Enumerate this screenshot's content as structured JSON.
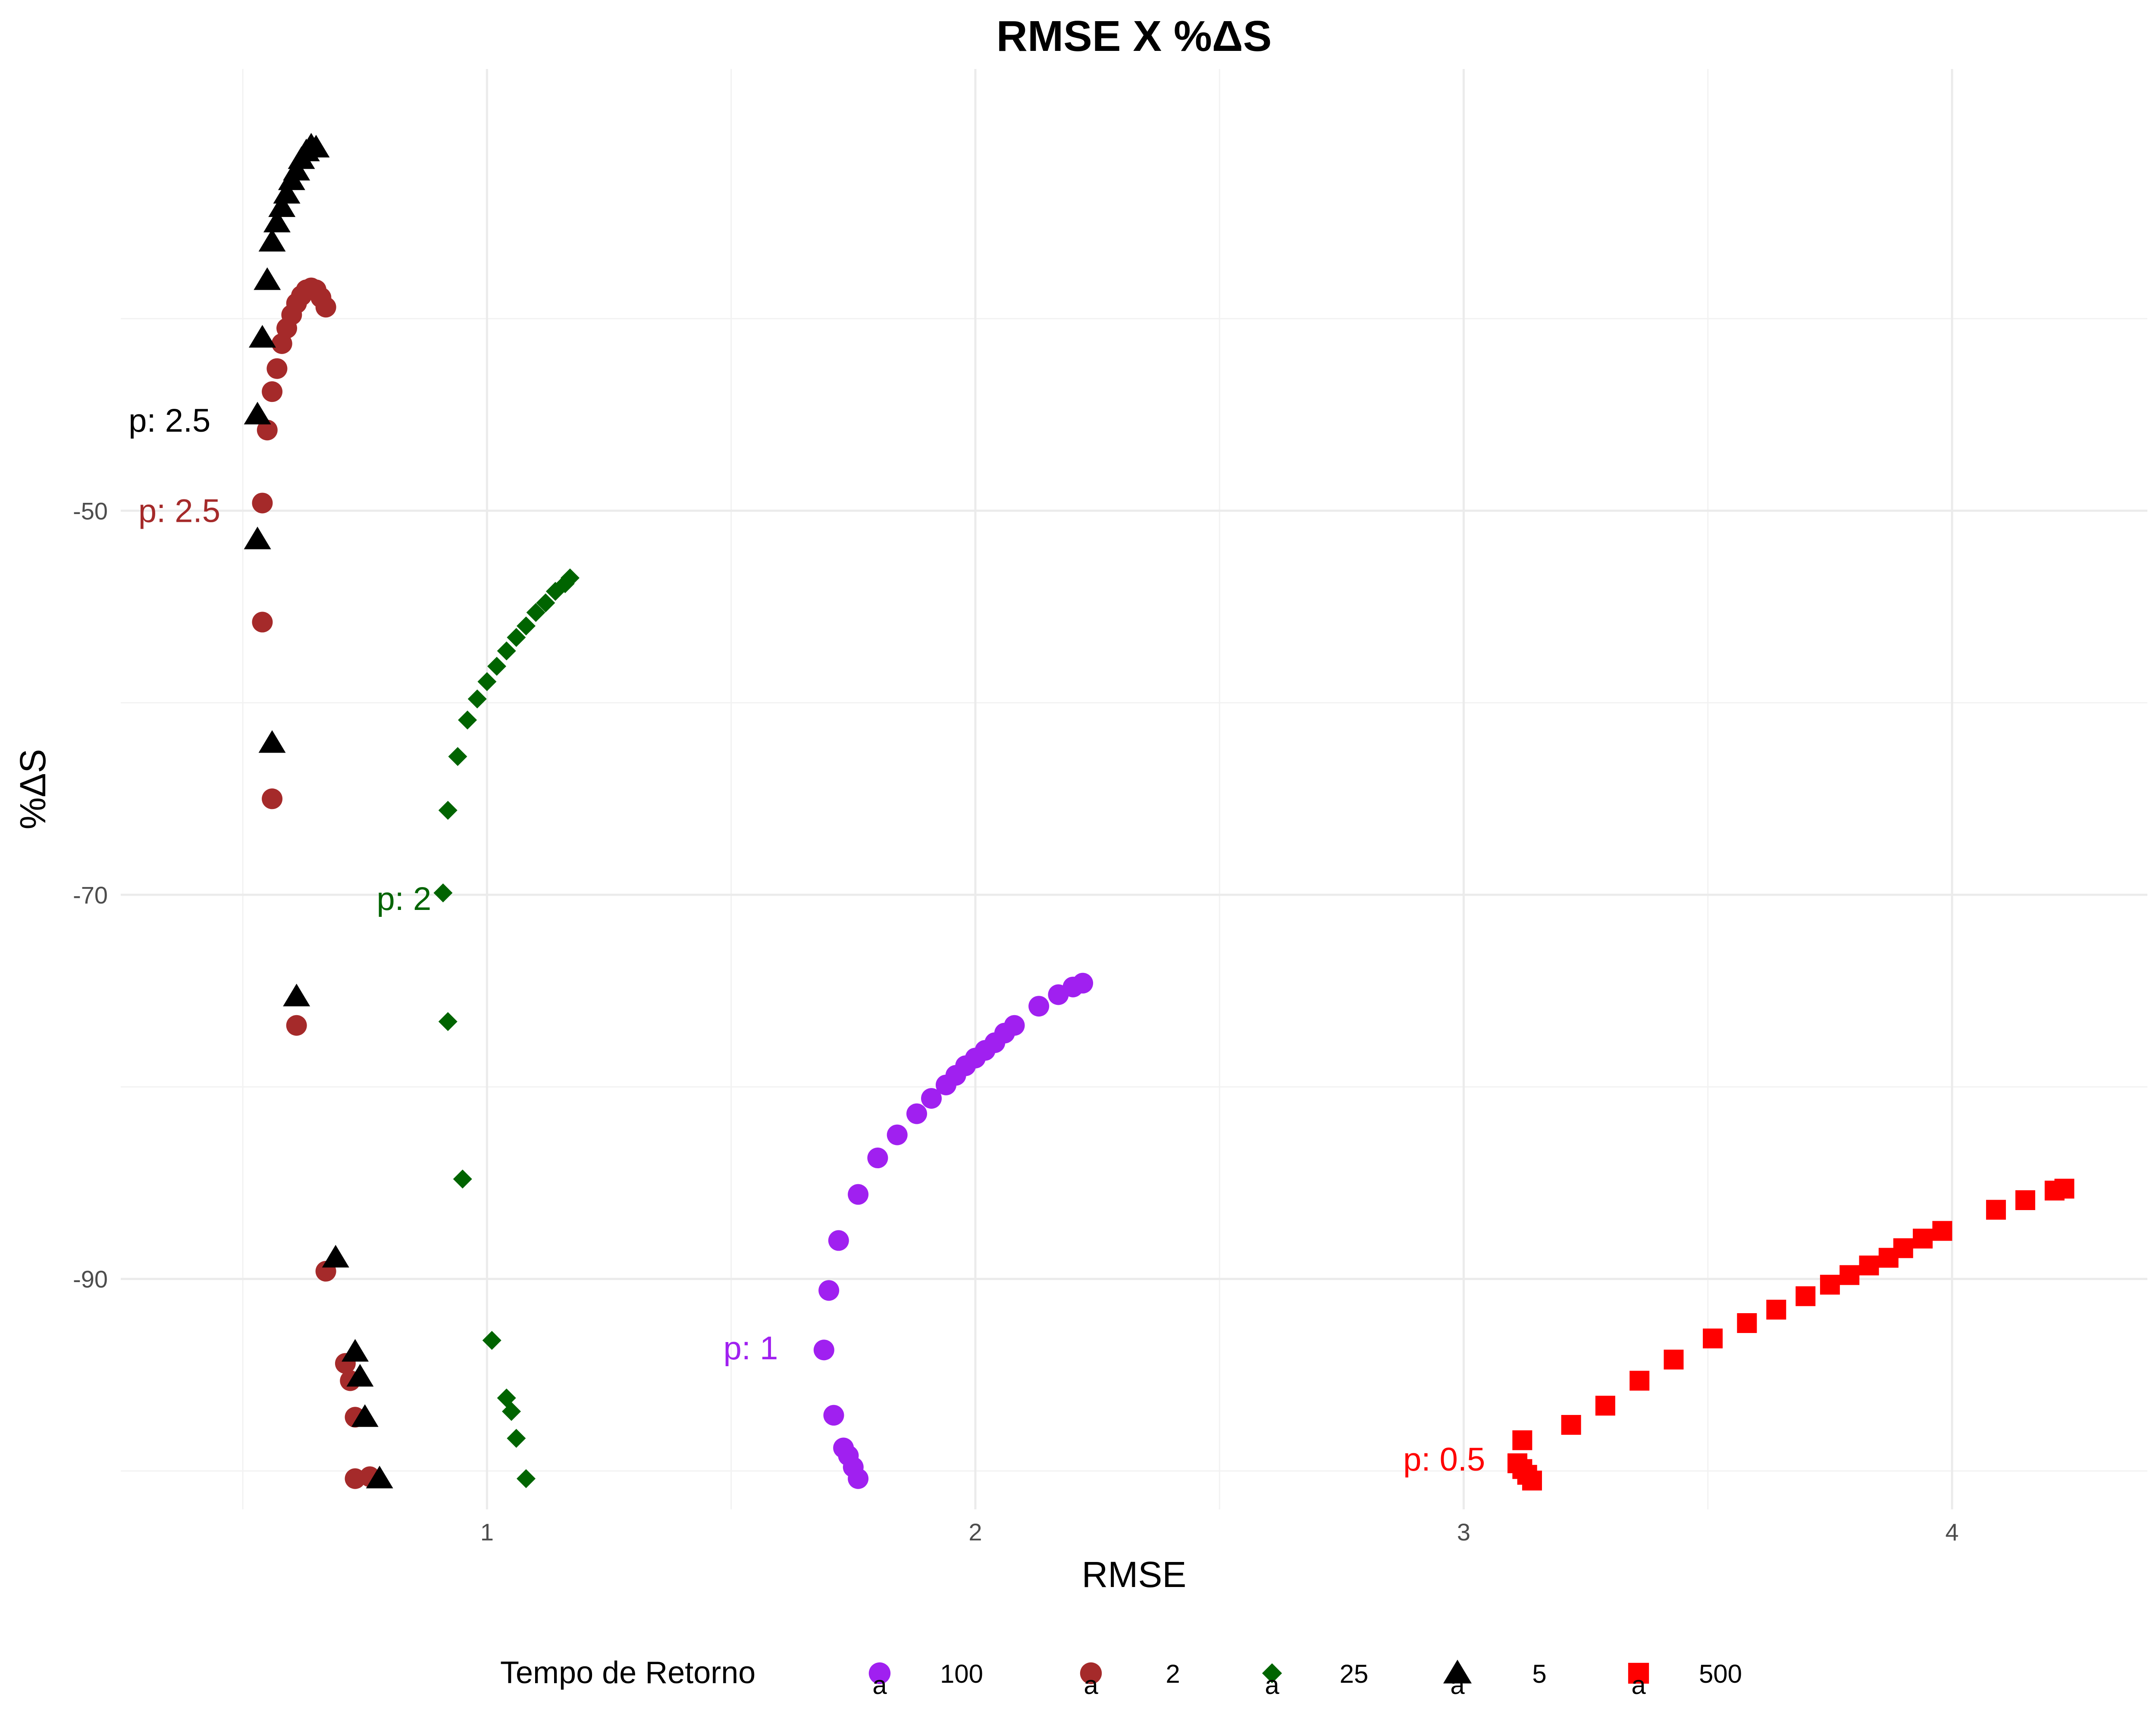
{
  "chart_data": {
    "type": "scatter",
    "title": "RMSE X %ΔS",
    "xlabel": "RMSE",
    "ylabel": "%ΔS",
    "xlim": [
      0.25,
      4.4
    ],
    "ylim": [
      -102,
      -27
    ],
    "x_ticks": [
      1,
      2,
      3,
      4
    ],
    "y_ticks": [
      -50,
      -70,
      -90
    ],
    "grid": true,
    "legend": {
      "title": "Tempo de Retorno",
      "position": "bottom",
      "glyph_text": "a",
      "entries": [
        {
          "label": "100",
          "color": "#a020f0",
          "shape": "circle"
        },
        {
          "label": "2",
          "color": "#a52a2a",
          "shape": "circle"
        },
        {
          "label": "25",
          "color": "#006400",
          "shape": "diamond"
        },
        {
          "label": "5",
          "color": "#000000",
          "shape": "triangle"
        },
        {
          "label": "500",
          "color": "#ff0000",
          "shape": "square"
        }
      ]
    },
    "series": [
      {
        "name": "100",
        "color": "#a020f0",
        "shape": "circle",
        "points": [
          [
            1.76,
            -100.4
          ],
          [
            1.75,
            -99.8
          ],
          [
            1.74,
            -99.2
          ],
          [
            1.73,
            -98.8
          ],
          [
            1.71,
            -97.1
          ],
          [
            1.69,
            -93.7
          ],
          [
            1.7,
            -90.6
          ],
          [
            1.72,
            -88.0
          ],
          [
            1.76,
            -85.6
          ],
          [
            1.8,
            -83.7
          ],
          [
            1.84,
            -82.5
          ],
          [
            1.88,
            -81.4
          ],
          [
            1.91,
            -80.6
          ],
          [
            1.94,
            -79.9
          ],
          [
            1.96,
            -79.4
          ],
          [
            1.98,
            -78.9
          ],
          [
            2.0,
            -78.5
          ],
          [
            2.02,
            -78.1
          ],
          [
            2.04,
            -77.7
          ],
          [
            2.06,
            -77.2
          ],
          [
            2.08,
            -76.8
          ],
          [
            2.13,
            -75.8
          ],
          [
            2.17,
            -75.2
          ],
          [
            2.2,
            -74.8
          ],
          [
            2.22,
            -74.6
          ]
        ]
      },
      {
        "name": "2",
        "color": "#a52a2a",
        "shape": "circle",
        "points": [
          [
            0.73,
            -100.4
          ],
          [
            0.76,
            -100.3
          ],
          [
            0.73,
            -97.2
          ],
          [
            0.72,
            -95.3
          ],
          [
            0.71,
            -94.4
          ],
          [
            0.67,
            -89.6
          ],
          [
            0.61,
            -76.8
          ],
          [
            0.56,
            -65.0
          ],
          [
            0.54,
            -55.8
          ],
          [
            0.54,
            -49.6
          ],
          [
            0.55,
            -45.8
          ],
          [
            0.56,
            -43.8
          ],
          [
            0.57,
            -42.6
          ],
          [
            0.58,
            -41.3
          ],
          [
            0.59,
            -40.5
          ],
          [
            0.6,
            -39.8
          ],
          [
            0.61,
            -39.2
          ],
          [
            0.62,
            -38.8
          ],
          [
            0.63,
            -38.5
          ],
          [
            0.64,
            -38.4
          ],
          [
            0.65,
            -38.5
          ],
          [
            0.66,
            -38.9
          ],
          [
            0.67,
            -39.4
          ]
        ]
      },
      {
        "name": "25",
        "color": "#006400",
        "shape": "diamond",
        "points": [
          [
            1.08,
            -100.4
          ],
          [
            1.06,
            -98.3
          ],
          [
            1.05,
            -96.9
          ],
          [
            1.04,
            -96.2
          ],
          [
            1.01,
            -93.2
          ],
          [
            0.95,
            -84.8
          ],
          [
            0.92,
            -76.6
          ],
          [
            0.91,
            -69.9
          ],
          [
            0.92,
            -65.6
          ],
          [
            0.94,
            -62.8
          ],
          [
            0.96,
            -60.9
          ],
          [
            0.98,
            -59.8
          ],
          [
            1.0,
            -58.9
          ],
          [
            1.02,
            -58.1
          ],
          [
            1.04,
            -57.3
          ],
          [
            1.06,
            -56.6
          ],
          [
            1.08,
            -56.0
          ],
          [
            1.1,
            -55.3
          ],
          [
            1.12,
            -54.8
          ],
          [
            1.14,
            -54.2
          ],
          [
            1.16,
            -53.8
          ],
          [
            1.17,
            -53.5
          ]
        ]
      },
      {
        "name": "5",
        "color": "#000000",
        "shape": "triangle",
        "points": [
          [
            0.78,
            -100.4
          ],
          [
            0.75,
            -97.2
          ],
          [
            0.74,
            -95.1
          ],
          [
            0.73,
            -93.8
          ],
          [
            0.69,
            -88.9
          ],
          [
            0.61,
            -75.3
          ],
          [
            0.56,
            -62.1
          ],
          [
            0.53,
            -51.5
          ],
          [
            0.53,
            -45.0
          ],
          [
            0.54,
            -41.0
          ],
          [
            0.55,
            -38.0
          ],
          [
            0.56,
            -36.0
          ],
          [
            0.57,
            -35.0
          ],
          [
            0.58,
            -34.2
          ],
          [
            0.59,
            -33.5
          ],
          [
            0.6,
            -32.8
          ],
          [
            0.61,
            -32.3
          ],
          [
            0.62,
            -31.7
          ],
          [
            0.63,
            -31.3
          ],
          [
            0.64,
            -31.0
          ],
          [
            0.65,
            -31.1
          ]
        ]
      },
      {
        "name": "500",
        "color": "#ff0000",
        "shape": "square",
        "points": [
          [
            3.14,
            -100.5
          ],
          [
            3.13,
            -100.2
          ],
          [
            3.12,
            -99.9
          ],
          [
            3.11,
            -99.6
          ],
          [
            3.12,
            -98.4
          ],
          [
            3.22,
            -97.6
          ],
          [
            3.29,
            -96.6
          ],
          [
            3.36,
            -95.3
          ],
          [
            3.43,
            -94.2
          ],
          [
            3.51,
            -93.1
          ],
          [
            3.58,
            -92.3
          ],
          [
            3.64,
            -91.6
          ],
          [
            3.7,
            -90.9
          ],
          [
            3.75,
            -90.3
          ],
          [
            3.79,
            -89.8
          ],
          [
            3.83,
            -89.3
          ],
          [
            3.87,
            -88.9
          ],
          [
            3.9,
            -88.4
          ],
          [
            3.94,
            -87.9
          ],
          [
            3.98,
            -87.5
          ],
          [
            4.09,
            -86.4
          ],
          [
            4.15,
            -85.9
          ],
          [
            4.21,
            -85.4
          ],
          [
            4.23,
            -85.3
          ]
        ]
      }
    ],
    "annotations": [
      {
        "text": "p: 2.5",
        "x": 0.35,
        "y": -45.3,
        "color": "#000000"
      },
      {
        "text": "p: 2.5",
        "x": 0.37,
        "y": -50.0,
        "color": "#a52a2a"
      },
      {
        "text": "p: 2",
        "x": 0.83,
        "y": -70.2,
        "color": "#006400"
      },
      {
        "text": "p: 1",
        "x": 1.54,
        "y": -93.6,
        "color": "#a020f0"
      },
      {
        "text": "p: 0.5",
        "x": 2.96,
        "y": -99.4,
        "color": "#ff0000"
      }
    ]
  }
}
